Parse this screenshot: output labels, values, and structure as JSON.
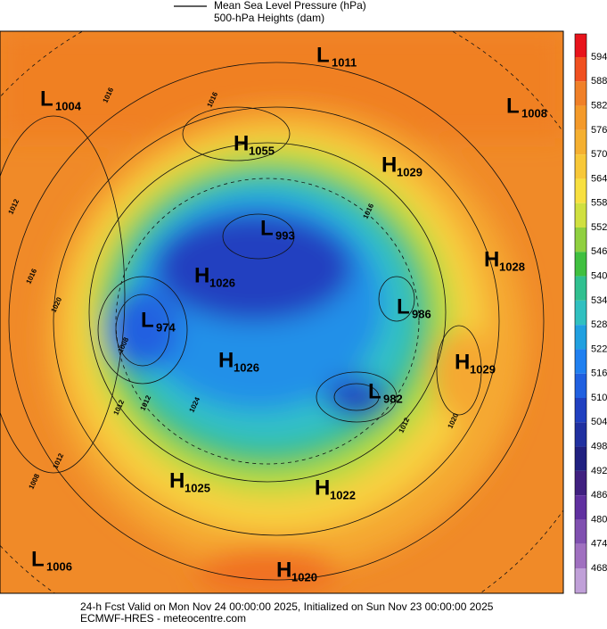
{
  "legend": {
    "line_label": "Mean Sea Level Pressure (hPa)",
    "fill_label": "500-hPa Heights (dam)"
  },
  "colorbar": {
    "labels": [
      594,
      588,
      582,
      576,
      570,
      564,
      558,
      552,
      546,
      540,
      534,
      528,
      522,
      516,
      510,
      504,
      498,
      492,
      486,
      480,
      474,
      468
    ]
  },
  "systems": [
    {
      "type": "L",
      "value": 1011
    },
    {
      "type": "L",
      "value": 1004
    },
    {
      "type": "H",
      "value": 1055
    },
    {
      "type": "L",
      "value": 1008
    },
    {
      "type": "H",
      "value": 1029
    },
    {
      "type": "L",
      "value": 993
    },
    {
      "type": "H",
      "value": 1028
    },
    {
      "type": "H",
      "value": 1026
    },
    {
      "type": "L",
      "value": 986
    },
    {
      "type": "L",
      "value": 974
    },
    {
      "type": "H",
      "value": 1026
    },
    {
      "type": "H",
      "value": 1029
    },
    {
      "type": "L",
      "value": 982
    },
    {
      "type": "H",
      "value": 1025
    },
    {
      "type": "H",
      "value": 1022
    },
    {
      "type": "L",
      "value": 1006
    },
    {
      "type": "H",
      "value": 1020
    }
  ],
  "isobar_labels": [
    1016,
    1012,
    1016,
    1020,
    1008,
    1016,
    1012,
    1012,
    1008,
    1012,
    1024,
    1016,
    1020,
    1012
  ],
  "footer": {
    "line1": "24-h Fcst Valid on Mon Nov 24 00:00:00 2025, Initialized on Sun Nov 23 00:00:00 2025",
    "line2": "ECMWF-HRES  - meteocentre.com"
  }
}
